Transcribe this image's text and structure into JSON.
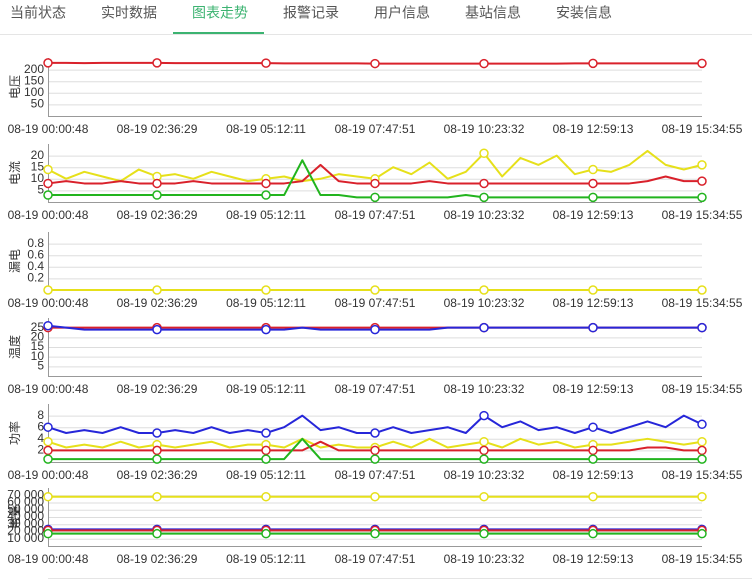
{
  "tabs": [
    "当前状态",
    "实时数据",
    "图表走势",
    "报警记录",
    "用户信息",
    "基站信息",
    "安装信息"
  ],
  "active_tab": 2,
  "chart_data": [
    {
      "type": "line",
      "y_label": "电压",
      "categories": [
        "08-19 00:00:48",
        null,
        null,
        null,
        null,
        null,
        "08-19 02:36:29",
        null,
        null,
        null,
        null,
        null,
        "08-19 05:12:11",
        null,
        null,
        null,
        null,
        null,
        "08-19 07:47:51",
        null,
        null,
        null,
        null,
        null,
        "08-19 10:23:32",
        null,
        null,
        null,
        null,
        null,
        "08-19 12:59:13",
        null,
        null,
        null,
        null,
        null,
        "08-19 15:34:55"
      ],
      "ylim": [
        0,
        250
      ],
      "yticks": [
        50,
        100,
        150,
        200
      ],
      "grid": true,
      "series": [
        {
          "color": "#d9212b",
          "values": [
            229,
            229,
            228,
            229,
            229,
            229,
            229,
            228,
            228,
            228,
            228,
            228,
            228,
            227,
            227,
            227,
            227,
            227,
            226,
            226,
            226,
            226,
            226,
            226,
            226,
            226,
            226,
            226,
            226,
            227,
            227,
            227,
            227,
            227,
            227,
            227,
            227
          ]
        }
      ]
    },
    {
      "type": "line",
      "y_label": "电流",
      "categories": [
        "08-19 00:00:48",
        null,
        null,
        null,
        null,
        null,
        "08-19 02:36:29",
        null,
        null,
        null,
        null,
        null,
        "08-19 05:12:11",
        null,
        null,
        null,
        null,
        null,
        "08-19 07:47:51",
        null,
        null,
        null,
        null,
        null,
        "08-19 10:23:32",
        null,
        null,
        null,
        null,
        null,
        "08-19 12:59:13",
        null,
        null,
        null,
        null,
        null,
        "08-19 15:34:55"
      ],
      "ylim": [
        0,
        25
      ],
      "yticks": [
        5,
        10,
        15,
        20
      ],
      "grid": true,
      "series": [
        {
          "color": "#e6e01a",
          "values": [
            14,
            10,
            13,
            11,
            9,
            14,
            11,
            12,
            10,
            13,
            11,
            9,
            10,
            11,
            9,
            10,
            12,
            11,
            10,
            15,
            12,
            17,
            10,
            13,
            21,
            11,
            19,
            16,
            20,
            12,
            14,
            13,
            16,
            22,
            16,
            14,
            16
          ]
        },
        {
          "color": "#d9212b",
          "values": [
            8,
            9,
            8,
            8,
            9,
            8,
            8,
            8,
            9,
            8,
            8,
            8,
            8,
            8,
            9,
            16,
            9,
            8,
            8,
            8,
            8,
            9,
            8,
            8,
            8,
            8,
            8,
            8,
            8,
            8,
            8,
            8,
            8,
            9,
            11,
            9,
            9
          ]
        },
        {
          "color": "#22b41e",
          "values": [
            3,
            3,
            3,
            3,
            3,
            3,
            3,
            3,
            3,
            3,
            3,
            3,
            3,
            3,
            18,
            3,
            3,
            2,
            2,
            2,
            2,
            2,
            2,
            3,
            2,
            2,
            2,
            2,
            2,
            2,
            2,
            2,
            2,
            2,
            2,
            2,
            2
          ]
        }
      ]
    },
    {
      "type": "line",
      "y_label": "漏电",
      "categories": [
        "08-19 00:00:48",
        null,
        null,
        null,
        null,
        null,
        "08-19 02:36:29",
        null,
        null,
        null,
        null,
        null,
        "08-19 05:12:11",
        null,
        null,
        null,
        null,
        null,
        "08-19 07:47:51",
        null,
        null,
        null,
        null,
        null,
        "08-19 10:23:32",
        null,
        null,
        null,
        null,
        null,
        "08-19 12:59:13",
        null,
        null,
        null,
        null,
        null,
        "08-19 15:34:55"
      ],
      "ylim": [
        0,
        1
      ],
      "yticks": [
        0.2,
        0.4,
        0.6,
        0.8
      ],
      "grid": true,
      "series": [
        {
          "color": "#e6e01a",
          "values": [
            0,
            0,
            0,
            0,
            0,
            0,
            0,
            0,
            0,
            0,
            0,
            0,
            0,
            0,
            0,
            0,
            0,
            0,
            0,
            0,
            0,
            0,
            0,
            0,
            0,
            0,
            0,
            0,
            0,
            0,
            0,
            0,
            0,
            0,
            0,
            0,
            0
          ]
        }
      ]
    },
    {
      "type": "line",
      "y_label": "温度",
      "categories": [
        "08-19 00:00:48",
        null,
        null,
        null,
        null,
        null,
        "08-19 02:36:29",
        null,
        null,
        null,
        null,
        null,
        "08-19 05:12:11",
        null,
        null,
        null,
        null,
        null,
        "08-19 07:47:51",
        null,
        null,
        null,
        null,
        null,
        "08-19 10:23:32",
        null,
        null,
        null,
        null,
        null,
        "08-19 12:59:13",
        null,
        null,
        null,
        null,
        null,
        "08-19 15:34:55"
      ],
      "ylim": [
        0,
        30
      ],
      "yticks": [
        5,
        10,
        15,
        20,
        25
      ],
      "grid": true,
      "series": [
        {
          "color": "#d9212b",
          "values": [
            25,
            25,
            25,
            25,
            25,
            25,
            25,
            25,
            25,
            25,
            25,
            25,
            25,
            25,
            25,
            25,
            25,
            25,
            25,
            25,
            25,
            25,
            25,
            25,
            25,
            25,
            25,
            25,
            25,
            25,
            25,
            25,
            25,
            25,
            25,
            25,
            25
          ]
        },
        {
          "color": "#2626d9",
          "values": [
            26,
            25,
            24,
            24,
            24,
            24,
            24,
            24,
            24,
            24,
            24,
            24,
            24,
            24,
            25,
            24,
            24,
            24,
            24,
            24,
            24,
            24,
            25,
            25,
            25,
            25,
            25,
            25,
            25,
            25,
            25,
            25,
            25,
            25,
            25,
            25,
            25
          ]
        }
      ]
    },
    {
      "type": "line",
      "y_label": "功率",
      "categories": [
        "08-19 00:00:48",
        null,
        null,
        null,
        null,
        null,
        "08-19 02:36:29",
        null,
        null,
        null,
        null,
        null,
        "08-19 05:12:11",
        null,
        null,
        null,
        null,
        null,
        "08-19 07:47:51",
        null,
        null,
        null,
        null,
        null,
        "08-19 10:23:32",
        null,
        null,
        null,
        null,
        null,
        "08-19 12:59:13",
        null,
        null,
        null,
        null,
        null,
        "08-19 15:34:55"
      ],
      "ylim": [
        0,
        10
      ],
      "yticks": [
        2,
        4,
        6,
        8
      ],
      "grid": true,
      "series": [
        {
          "color": "#2626d9",
          "values": [
            6,
            5,
            5.5,
            5,
            6,
            5,
            5,
            5.5,
            5,
            6,
            5,
            5.5,
            5,
            6,
            8,
            5.5,
            6,
            5,
            5,
            6,
            5,
            5.5,
            6,
            5,
            8,
            6,
            7,
            5.5,
            6,
            5,
            6,
            5,
            6,
            7,
            6,
            8,
            6.5
          ]
        },
        {
          "color": "#e6e01a",
          "values": [
            3.5,
            2.5,
            3,
            2.5,
            3.5,
            2.5,
            3,
            2.5,
            3,
            3.5,
            2.5,
            3,
            3,
            2.5,
            4,
            2.5,
            3,
            2.5,
            2.5,
            3.5,
            2.5,
            4,
            2.5,
            3,
            3.5,
            2.5,
            4,
            3,
            3.5,
            2.5,
            3,
            3,
            3.5,
            4,
            3.5,
            3,
            3.5
          ]
        },
        {
          "color": "#d9212b",
          "values": [
            2,
            2,
            2,
            2,
            2,
            2,
            2,
            2,
            2,
            2,
            2,
            2,
            2,
            2,
            2,
            3.5,
            2,
            2,
            2,
            2,
            2,
            2,
            2,
            2,
            2,
            2,
            2,
            2,
            2,
            2,
            2,
            2,
            2,
            2.5,
            2.5,
            2,
            2
          ]
        },
        {
          "color": "#22b41e",
          "values": [
            0.5,
            0.5,
            0.5,
            0.5,
            0.5,
            0.5,
            0.5,
            0.5,
            0.5,
            0.5,
            0.5,
            0.5,
            0.5,
            0.5,
            4,
            0.5,
            0.5,
            0.5,
            0.5,
            0.5,
            0.5,
            0.5,
            0.5,
            0.5,
            0.5,
            0.5,
            0.5,
            0.5,
            0.5,
            0.5,
            0.5,
            0.5,
            0.5,
            0.5,
            0.5,
            0.5,
            0.5
          ]
        }
      ]
    },
    {
      "type": "line",
      "y_label": "电量",
      "categories": [
        "08-19 00:00:48",
        null,
        null,
        null,
        null,
        null,
        "08-19 02:36:29",
        null,
        null,
        null,
        null,
        null,
        "08-19 05:12:11",
        null,
        null,
        null,
        null,
        null,
        "08-19 07:47:51",
        null,
        null,
        null,
        null,
        null,
        "08-19 10:23:32",
        null,
        null,
        null,
        null,
        null,
        "08-19 12:59:13",
        null,
        null,
        null,
        null,
        null,
        "08-19 15:34:55"
      ],
      "ylim": [
        0,
        80000
      ],
      "yticks": [
        {
          "value": 10000,
          "label": "10 000"
        },
        {
          "value": 20000,
          "label": "20 000"
        },
        {
          "value": 30000,
          "label": "30 000"
        },
        {
          "value": 40000,
          "label": "40 000"
        },
        {
          "value": 50000,
          "label": "50 000"
        },
        {
          "value": 60000,
          "label": "60 000"
        },
        {
          "value": 70000,
          "label": "70 000"
        }
      ],
      "grid": true,
      "series": [
        {
          "color": "#e6e01a",
          "values": [
            68000,
            68000,
            68000,
            68000,
            68000,
            68000,
            68000,
            68000,
            68000,
            68000,
            68000,
            68000,
            68000,
            68000,
            68000,
            68000,
            68000,
            68000,
            68000,
            68000,
            68000,
            68000,
            68000,
            68000,
            68000,
            68000,
            68000,
            68000,
            68000,
            68000,
            68000,
            68000,
            68000,
            68000,
            68000,
            68000,
            68000
          ]
        },
        {
          "color": "#2626d9",
          "values": [
            23000,
            23000,
            23000,
            23000,
            23000,
            23000,
            23000,
            23000,
            23000,
            23000,
            23000,
            23000,
            23000,
            23000,
            23000,
            23000,
            23000,
            23000,
            23000,
            23000,
            23000,
            23000,
            23000,
            23000,
            23000,
            23000,
            23000,
            23000,
            23000,
            23000,
            23000,
            23000,
            23000,
            23000,
            23000,
            23000,
            23000
          ]
        },
        {
          "color": "#d9212b",
          "values": [
            21500,
            21500,
            21500,
            21500,
            21500,
            21500,
            21500,
            21500,
            21500,
            21500,
            21500,
            21500,
            21500,
            21500,
            21500,
            21500,
            21500,
            21500,
            21500,
            21500,
            21500,
            21500,
            21500,
            21500,
            21500,
            21500,
            21500,
            21500,
            21500,
            21500,
            21500,
            21500,
            21500,
            21500,
            21500,
            21500,
            21500
          ]
        },
        {
          "color": "#22b41e",
          "values": [
            17000,
            17000,
            17000,
            17000,
            17000,
            17000,
            17000,
            17000,
            17000,
            17000,
            17000,
            17000,
            17000,
            17000,
            17000,
            17000,
            17000,
            17000,
            17000,
            17000,
            17000,
            17000,
            17000,
            17000,
            17000,
            17000,
            17000,
            17000,
            17000,
            17000,
            17000,
            17000,
            17000,
            17000,
            17000,
            17000,
            17000
          ]
        }
      ]
    }
  ]
}
